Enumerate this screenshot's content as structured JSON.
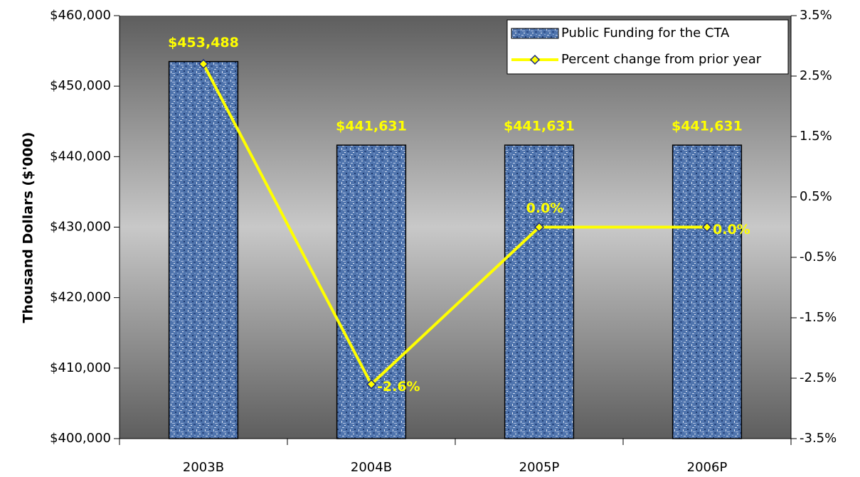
{
  "chart_data": {
    "type": "bar_line",
    "y_axis_label": "Thousand Dollars ($'000)",
    "categories": [
      "2003B",
      "2004B",
      "2005P",
      "2006P"
    ],
    "series": [
      {
        "name": "Public Funding for the CTA",
        "type": "bar",
        "color": "#4f74ad",
        "values": [
          453488,
          441631,
          441631,
          441631
        ],
        "value_labels": [
          "$453,488",
          "$441,631",
          "$441,631",
          "$441,631"
        ]
      },
      {
        "name": "Percent change from prior year",
        "type": "line",
        "axis": "y2",
        "color": "#ffff00",
        "marker_edge": "#1a2a80",
        "values": [
          2.7,
          -2.6,
          0.0,
          0.0
        ],
        "value_labels": [
          null,
          "-2.6%",
          "0.0%",
          "0.0%"
        ]
      }
    ],
    "ylim": [
      400000,
      460000
    ],
    "yticks": [
      {
        "value": 400000,
        "label": "$400,000"
      },
      {
        "value": 410000,
        "label": "$410,000"
      },
      {
        "value": 420000,
        "label": "$420,000"
      },
      {
        "value": 430000,
        "label": "$430,000"
      },
      {
        "value": 440000,
        "label": "$440,000"
      },
      {
        "value": 450000,
        "label": "$450,000"
      },
      {
        "value": 460000,
        "label": "$460,000"
      }
    ],
    "y2lim": [
      -3.5,
      3.5
    ],
    "y2ticks": [
      {
        "value": -3.5,
        "label": "-3.5%"
      },
      {
        "value": -2.5,
        "label": "-2.5%"
      },
      {
        "value": -1.5,
        "label": "-1.5%"
      },
      {
        "value": -0.5,
        "label": "-0.5%"
      },
      {
        "value": 0.5,
        "label": "0.5%"
      },
      {
        "value": 1.5,
        "label": "1.5%"
      },
      {
        "value": 2.5,
        "label": "2.5%"
      },
      {
        "value": 3.5,
        "label": "3.5%"
      }
    ],
    "legend": "upper right"
  }
}
